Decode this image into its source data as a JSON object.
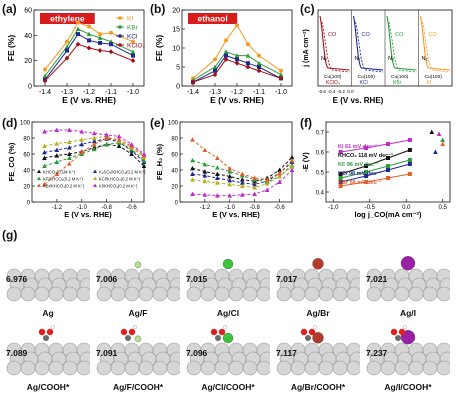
{
  "panel_labels": [
    "(a)",
    "(b)",
    "(c)",
    "(d)",
    "(e)",
    "(f)",
    "(g)"
  ],
  "colors": {
    "KI": "#f59a23",
    "KBr": "#2e9b3b",
    "KCl": "#1e2a8c",
    "KClO4": "#a0101a",
    "ethylene_label_bg": "#d81b1b",
    "ethanol_label_bg": "#d81b1b",
    "ag_atom": "#d6d6d6",
    "F": "#b7e08a",
    "Cl": "#3cc43c",
    "Br": "#b63a2a",
    "I": "#9c1fa8",
    "C": "#6a6a6a",
    "O": "#e02020",
    "H": "#ffffff"
  },
  "chart_data": [
    {
      "id": "a",
      "type": "line",
      "badge": "ethylene",
      "xlabel": "E (V vs. RHE)",
      "ylabel": "FE (%)",
      "xlim": [
        -1.45,
        -0.95
      ],
      "ylim": [
        0,
        60
      ],
      "xticks": [
        "-1.4",
        "-1.3",
        "-1.2",
        "-1.1",
        "-1.0"
      ],
      "yticks": [
        "0",
        "20",
        "40",
        "60"
      ],
      "x": [
        -1.4,
        -1.3,
        -1.25,
        -1.2,
        -1.15,
        -1.1,
        -1.0
      ],
      "series": [
        {
          "name": "KI",
          "values": [
            13,
            35,
            50,
            47,
            41,
            42,
            35
          ]
        },
        {
          "name": "KBr",
          "values": [
            8,
            31,
            45,
            41,
            38,
            35,
            27
          ]
        },
        {
          "name": "KCl",
          "values": [
            5,
            28,
            41,
            36,
            34,
            33,
            24
          ]
        },
        {
          "name": "KClO4",
          "values": [
            4,
            22,
            33,
            30,
            28,
            27,
            20
          ]
        }
      ]
    },
    {
      "id": "b",
      "type": "line",
      "badge": "ethanol",
      "xlabel": "E (V vs. RHE)",
      "ylabel": "FE (%)",
      "xlim": [
        -1.45,
        -0.95
      ],
      "ylim": [
        0,
        20
      ],
      "xticks": [
        "-1.4",
        "-1.3",
        "-1.2",
        "-1.1",
        "-1.0"
      ],
      "yticks": [
        "0",
        "5",
        "10",
        "15",
        "20"
      ],
      "x": [
        -1.4,
        -1.3,
        -1.25,
        -1.2,
        -1.15,
        -1.1,
        -1.0
      ],
      "series": [
        {
          "name": "KI",
          "values": [
            2,
            7,
            12,
            16,
            11,
            8,
            4
          ]
        },
        {
          "name": "KBr",
          "values": [
            1.5,
            5,
            9,
            8,
            8,
            6,
            3
          ]
        },
        {
          "name": "KCl",
          "values": [
            1,
            4,
            8,
            7,
            6,
            5,
            2
          ]
        },
        {
          "name": "KClO4",
          "values": [
            1,
            3,
            7,
            6,
            5,
            4,
            2
          ]
        }
      ]
    },
    {
      "id": "c",
      "type": "line",
      "xlabel": "E (V vs. RHE)",
      "ylabel": "j (mA cm⁻²)",
      "xticks": [
        "-0.6",
        "-0.4",
        "-0.2",
        "0.0"
      ],
      "subpanels": [
        {
          "electrolyte": "KClO₄",
          "label": "Cu(100)",
          "peak": "CO",
          "color": "#a0101a"
        },
        {
          "electrolyte": "KCl",
          "label": "Cu(100)",
          "peak": "CO",
          "color": "#1e2a8c"
        },
        {
          "electrolyte": "KBr",
          "label": "Cu(100)",
          "peak": "CO",
          "color": "#2e9b3b"
        },
        {
          "electrolyte": "KI",
          "label": "Cu(100)",
          "peak": "CO",
          "color": "#f59a23"
        }
      ],
      "annotations": [
        "N₂",
        "N₂",
        "N₂",
        "N₂"
      ]
    },
    {
      "id": "d",
      "type": "line",
      "xlabel": "E (V vs. RHE)",
      "ylabel": "FE_CO (%)",
      "xlim": [
        -1.4,
        -0.5
      ],
      "ylim": [
        0,
        100
      ],
      "xticks": [
        "-1.2",
        "-1.0",
        "-0.8",
        "-0.6"
      ],
      "yticks": [
        "0",
        "20",
        "40",
        "60",
        "80",
        "100"
      ],
      "x": [
        -1.3,
        -1.2,
        -1.1,
        -1.0,
        -0.9,
        -0.8,
        -0.7,
        -0.6,
        -0.5
      ],
      "series": [
        {
          "name": "KHCO₃(0.1M K⁺)",
          "color": "#111111",
          "values": [
            55,
            58,
            60,
            63,
            68,
            72,
            70,
            60,
            45
          ]
        },
        {
          "name": "K₂SO₄/KHCO₃(0.2 M K⁺)",
          "color": "#1e2a8c",
          "values": [
            62,
            65,
            68,
            72,
            76,
            79,
            75,
            64,
            50
          ]
        },
        {
          "name": "KF/KHCO₃(0.2 M K⁺)",
          "color": "#2e9b3b",
          "values": [
            45,
            50,
            55,
            60,
            66,
            72,
            74,
            66,
            52
          ]
        },
        {
          "name": "KCl/KHCO₃(0.2 M K⁺)",
          "color": "#b6b020",
          "values": [
            70,
            73,
            75,
            78,
            80,
            82,
            76,
            68,
            56
          ]
        },
        {
          "name": "KBr/KHCO₃(0.2 M K⁺)",
          "color": "#e0602a",
          "values": [
            22,
            35,
            48,
            62,
            72,
            80,
            78,
            70,
            58
          ]
        },
        {
          "name": "KI/KHCO₃(0.2 M K⁺)",
          "color": "#c02cc8",
          "values": [
            88,
            90,
            90,
            88,
            86,
            84,
            82,
            72,
            60
          ]
        }
      ]
    },
    {
      "id": "e",
      "type": "line",
      "xlabel": "E (V vs. RHE)",
      "ylabel": "FE_H₂ (%)",
      "xlim": [
        -1.4,
        -0.5
      ],
      "ylim": [
        0,
        100
      ],
      "xticks": [
        "-1.2",
        "-1.0",
        "-0.8",
        "-0.6"
      ],
      "yticks": [
        "0",
        "20",
        "40",
        "60",
        "80",
        "100"
      ],
      "x": [
        -1.3,
        -1.2,
        -1.1,
        -1.0,
        -0.9,
        -0.8,
        -0.7,
        -0.6,
        -0.5
      ],
      "series": [
        {
          "name": "KHCO₃",
          "color": "#111111",
          "values": [
            42,
            38,
            35,
            32,
            28,
            26,
            30,
            40,
            56
          ]
        },
        {
          "name": "K₂SO₄",
          "color": "#1e2a8c",
          "values": [
            35,
            33,
            30,
            27,
            24,
            22,
            26,
            36,
            50
          ]
        },
        {
          "name": "KF",
          "color": "#2e9b3b",
          "values": [
            52,
            47,
            43,
            38,
            33,
            28,
            25,
            32,
            46
          ]
        },
        {
          "name": "KCl",
          "color": "#b6b020",
          "values": [
            28,
            26,
            24,
            22,
            20,
            18,
            23,
            32,
            44
          ]
        },
        {
          "name": "KBr",
          "color": "#e0602a",
          "values": [
            78,
            65,
            55,
            42,
            35,
            30,
            28,
            36,
            52
          ]
        },
        {
          "name": "KI",
          "color": "#c02cc8",
          "values": [
            10,
            9,
            8,
            8,
            9,
            10,
            15,
            25,
            40
          ]
        }
      ]
    },
    {
      "id": "f",
      "type": "line",
      "xlabel": "log j_CO(mA cm⁻²)",
      "ylabel": "-E (V)",
      "xlim": [
        -1.1,
        0.6
      ],
      "ylim": [
        0.35,
        0.75
      ],
      "xticks": [
        "-1.0",
        "-0.5",
        "0.0",
        "0.5"
      ],
      "yticks": [
        "0.4",
        "0.5",
        "0.6",
        "0.7"
      ],
      "series": [
        {
          "name": "KI 61 mV dec⁻¹",
          "color": "#c02cc8",
          "x": [
            -0.9,
            -0.55,
            -0.25,
            0.05
          ],
          "values": [
            0.6,
            0.62,
            0.64,
            0.66
          ]
        },
        {
          "name": "KHCO₃ 118 mV dec⁻¹",
          "color": "#111111",
          "x": [
            -0.9,
            -0.55,
            -0.25,
            0.05
          ],
          "values": [
            0.49,
            0.53,
            0.57,
            0.61
          ]
        },
        {
          "name": "KF 96 mV dec⁻¹",
          "color": "#2e9b3b",
          "x": [
            -0.9,
            -0.55,
            -0.25,
            0.05
          ],
          "values": [
            0.47,
            0.5,
            0.53,
            0.56
          ]
        },
        {
          "name": "KCl 98 mV dec⁻¹",
          "color": "#1e2a8c",
          "x": [
            -0.9,
            -0.55,
            -0.25,
            0.05
          ],
          "values": [
            0.45,
            0.48,
            0.51,
            0.54
          ]
        },
        {
          "name": "KBr 58 mV dec⁻¹",
          "color": "#e0602a",
          "x": [
            -0.9,
            -0.55,
            -0.25,
            0.05
          ],
          "values": [
            0.43,
            0.45,
            0.47,
            0.49
          ]
        }
      ]
    }
  ],
  "models": {
    "row1": [
      {
        "energy": "6.976",
        "caption": "Ag",
        "adatom": null
      },
      {
        "energy": "7.006",
        "caption": "Ag/F",
        "adatom": "F"
      },
      {
        "energy": "7.015",
        "caption": "Ag/Cl",
        "adatom": "Cl"
      },
      {
        "energy": "7.017",
        "caption": "Ag/Br",
        "adatom": "Br"
      },
      {
        "energy": "7.021",
        "caption": "Ag/I",
        "adatom": "I"
      }
    ],
    "row2": [
      {
        "energy": "7.089",
        "caption": "Ag/COOH*",
        "adatom": null
      },
      {
        "energy": "7.091",
        "caption": "Ag/F/COOH*",
        "adatom": "F"
      },
      {
        "energy": "7.096",
        "caption": "Ag/Cl/COOH*",
        "adatom": "Cl"
      },
      {
        "energy": "7.117",
        "caption": "Ag/Br/COOH*",
        "adatom": "Br"
      },
      {
        "energy": "7.237",
        "caption": "Ag/I/COOH*",
        "adatom": "I"
      }
    ]
  }
}
